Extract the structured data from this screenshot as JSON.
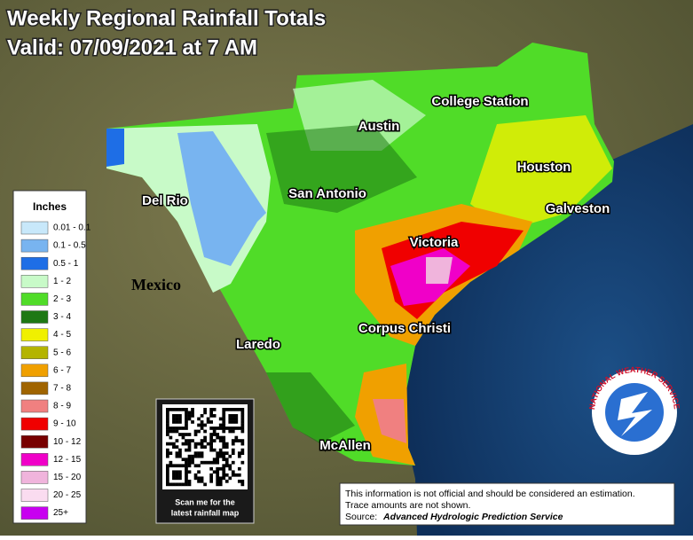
{
  "header": {
    "title": "Weekly Regional Rainfall Totals",
    "subtitle": "Valid: 07/09/2021 at 7 AM"
  },
  "legend": {
    "title": "Inches",
    "items": [
      {
        "label": "0.01 - 0.1",
        "color": "#c8e8fa"
      },
      {
        "label": "0.1 - 0.5",
        "color": "#78b4f0"
      },
      {
        "label": "0.5 - 1",
        "color": "#1e6ee6"
      },
      {
        "label": "1 - 2",
        "color": "#c8fac8"
      },
      {
        "label": "2 - 3",
        "color": "#50dc28"
      },
      {
        "label": "3 - 4",
        "color": "#1e7814"
      },
      {
        "label": "4 - 5",
        "color": "#f0f000"
      },
      {
        "label": "5 - 6",
        "color": "#b4b400"
      },
      {
        "label": "6 - 7",
        "color": "#f0a000"
      },
      {
        "label": "7 - 8",
        "color": "#a06400"
      },
      {
        "label": "8 - 9",
        "color": "#f08080"
      },
      {
        "label": "9 - 10",
        "color": "#f00000"
      },
      {
        "label": "10 - 12",
        "color": "#780000"
      },
      {
        "label": "12 - 15",
        "color": "#f000c8"
      },
      {
        "label": "15 - 20",
        "color": "#f0b4dc"
      },
      {
        "label": "20 - 25",
        "color": "#fadcf0"
      },
      {
        "label": "25+",
        "color": "#c800f0"
      }
    ]
  },
  "cities": [
    "College Station",
    "Austin",
    "Houston",
    "Del Rio",
    "San Antonio",
    "Galveston",
    "Victoria",
    "Corpus Christi",
    "Laredo",
    "McAllen"
  ],
  "country": "Mexico",
  "qr": {
    "caption": [
      "Scan me for the",
      "latest rainfall map"
    ]
  },
  "disclaimer": {
    "lines": [
      "This information is not official and should be considered an estimation.",
      "Trace amounts are not shown."
    ],
    "source_label": "Source:",
    "source": "Advanced Hydrologic Prediction Service"
  },
  "logo": {
    "text": "NATIONAL WEATHER SERVICE"
  }
}
